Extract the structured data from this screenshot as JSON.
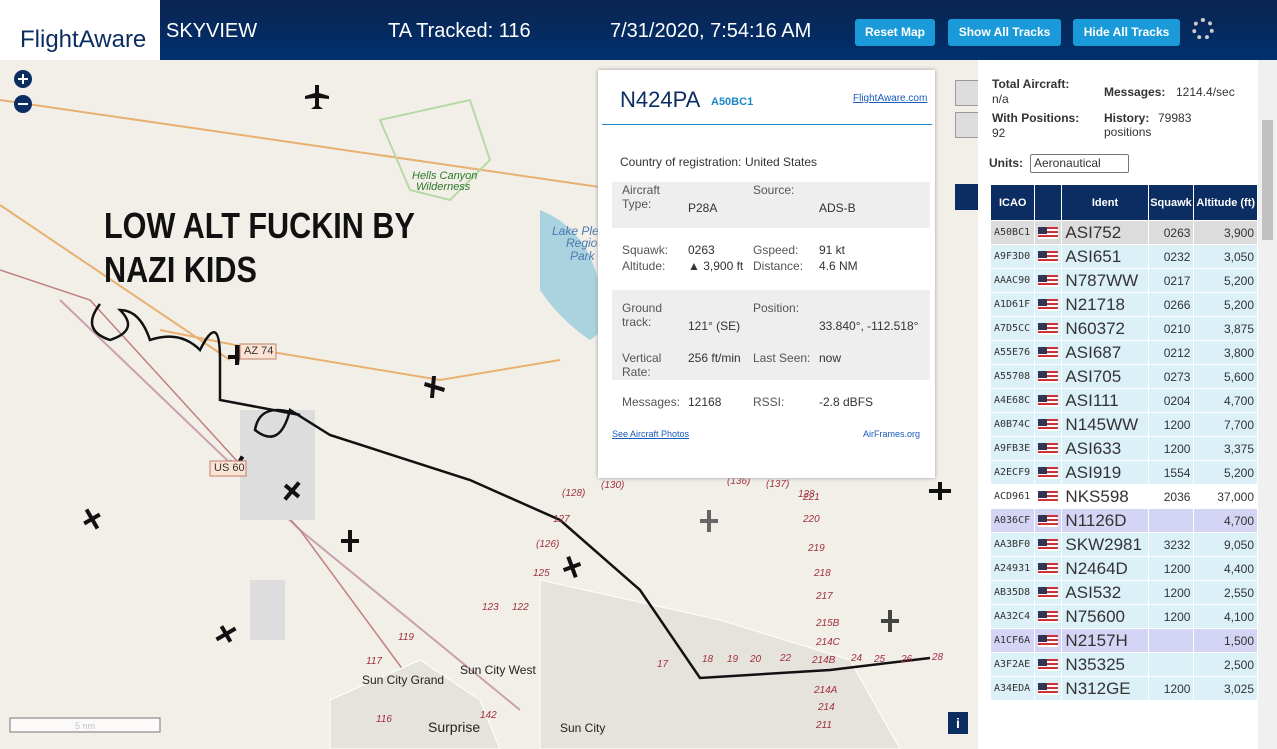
{
  "header": {
    "logo": "FlightAware",
    "title": "SKYVIEW",
    "tracked": "TA Tracked: 116",
    "datetime": "7/31/2020, 7:54:16 AM",
    "buttons": [
      "Reset Map",
      "Show All Tracks",
      "Hide All Tracks"
    ]
  },
  "map": {
    "overlay_text": [
      "LOW ALT FUCKIN BY",
      "NAZI KIDS"
    ],
    "places": [
      "Hells Canyon",
      "Wilderness",
      "Lake Plea",
      "Regio",
      "Park",
      "Sun City West",
      "Sun City Grand",
      "Surprise",
      "Sun City"
    ],
    "shields": [
      "AZ 74",
      "US 60"
    ],
    "road_labels": [
      "(128)",
      "(130)",
      "(136)",
      "(137)",
      "128",
      "127",
      "(126)",
      "125",
      "123",
      "122",
      "119",
      "117",
      "116",
      "142",
      "221",
      "220",
      "219",
      "218",
      "217",
      "215B",
      "214C",
      "214B",
      "214A",
      "214",
      "211",
      "17",
      "18",
      "19",
      "20",
      "22",
      "24",
      "25",
      "26",
      "28"
    ],
    "scale": "5 nm"
  },
  "popup": {
    "reg": "N424PA",
    "hex": "A50BC1",
    "link": "FlightAware.com",
    "country_label": "Country of registration:",
    "country": "United States",
    "fields": [
      [
        "Aircraft Type:",
        "P28A",
        "Source:",
        "ADS-B"
      ],
      [
        "Squawk:",
        "0263",
        "Gspeed:",
        "91 kt"
      ],
      [
        "Altitude:",
        "▲ 3,900 ft",
        "Distance:",
        "4.6 NM"
      ],
      [
        "Ground track:",
        "121° (SE)",
        "Position:",
        "33.840°, -112.518°"
      ],
      [
        "Vertical Rate:",
        "256 ft/min",
        "Last Seen:",
        "now"
      ],
      [
        "Messages:",
        "12168",
        "RSSI:",
        "-2.8 dBFS"
      ]
    ],
    "photos": "See Aircraft Photos",
    "airframes": "AirFrames.org"
  },
  "panel": {
    "total_label": "Total Aircraft:",
    "total": "n/a",
    "messages_label": "Messages:",
    "messages": "1214.4/sec",
    "positions_label": "With Positions:",
    "positions": "92",
    "history_label": "History:",
    "history": "79983 positions",
    "units_label": "Units:",
    "units": "Aeronautical",
    "columns": [
      "ICAO",
      "Ident",
      "Squawk",
      "Altitude (ft)"
    ],
    "rows": [
      {
        "icao": "A50BC1",
        "ident": "ASI752",
        "squawk": "0263",
        "altitude": "3,900",
        "color": "#dcdcdc"
      },
      {
        "icao": "A9F3D0",
        "ident": "ASI651",
        "squawk": "0232",
        "altitude": "3,050",
        "color": "#dcf0f8"
      },
      {
        "icao": "AAAC90",
        "ident": "N787WW",
        "squawk": "0217",
        "altitude": "5,200",
        "color": "#dcf0f8"
      },
      {
        "icao": "A1D61F",
        "ident": "N21718",
        "squawk": "0266",
        "altitude": "5,200",
        "color": "#dcf0f8"
      },
      {
        "icao": "A7D5CC",
        "ident": "N60372",
        "squawk": "0210",
        "altitude": "3,875",
        "color": "#dcf0f8"
      },
      {
        "icao": "A55E76",
        "ident": "ASI687",
        "squawk": "0212",
        "altitude": "3,800",
        "color": "#dcf0f8"
      },
      {
        "icao": "A55708",
        "ident": "ASI705",
        "squawk": "0273",
        "altitude": "5,600",
        "color": "#dcf0f8"
      },
      {
        "icao": "A4E68C",
        "ident": "ASI111",
        "squawk": "0204",
        "altitude": "4,700",
        "color": "#dcf0f8"
      },
      {
        "icao": "A0B74C",
        "ident": "N145WW",
        "squawk": "1200",
        "altitude": "7,700",
        "color": "#dcf0f8"
      },
      {
        "icao": "A9FB3E",
        "ident": "ASI633",
        "squawk": "1200",
        "altitude": "3,375",
        "color": "#dcf0f8"
      },
      {
        "icao": "A2ECF9",
        "ident": "ASI919",
        "squawk": "1554",
        "altitude": "5,200",
        "color": "#dcf0f8"
      },
      {
        "icao": "ACD961",
        "ident": "NKS598",
        "squawk": "2036",
        "altitude": "37,000",
        "color": "#ffffff"
      },
      {
        "icao": "A036CF",
        "ident": "N1126D",
        "squawk": null,
        "altitude": "4,700",
        "color": "#d4d4f4"
      },
      {
        "icao": "AA3BF0",
        "ident": "SKW2981",
        "squawk": "3232",
        "altitude": "9,050",
        "color": "#dcf0f8"
      },
      {
        "icao": "A24931",
        "ident": "N2464D",
        "squawk": "1200",
        "altitude": "4,400",
        "color": "#dcf0f8"
      },
      {
        "icao": "AB35D8",
        "ident": "ASI532",
        "squawk": "1200",
        "altitude": "2,550",
        "color": "#dcf0f8"
      },
      {
        "icao": "AA32C4",
        "ident": "N75600",
        "squawk": "1200",
        "altitude": "4,100",
        "color": "#dcf0f8"
      },
      {
        "icao": "A1CF6A",
        "ident": "N2157H",
        "squawk": null,
        "altitude": "1,500",
        "color": "#d4d4f4"
      },
      {
        "icao": "A3F2AE",
        "ident": "N35325",
        "squawk": null,
        "altitude": "2,500",
        "color": "#dcf0f8"
      },
      {
        "icao": "A34EDA",
        "ident": "N312GE",
        "squawk": "1200",
        "altitude": "3,025",
        "color": "#dcf0f8"
      }
    ]
  }
}
